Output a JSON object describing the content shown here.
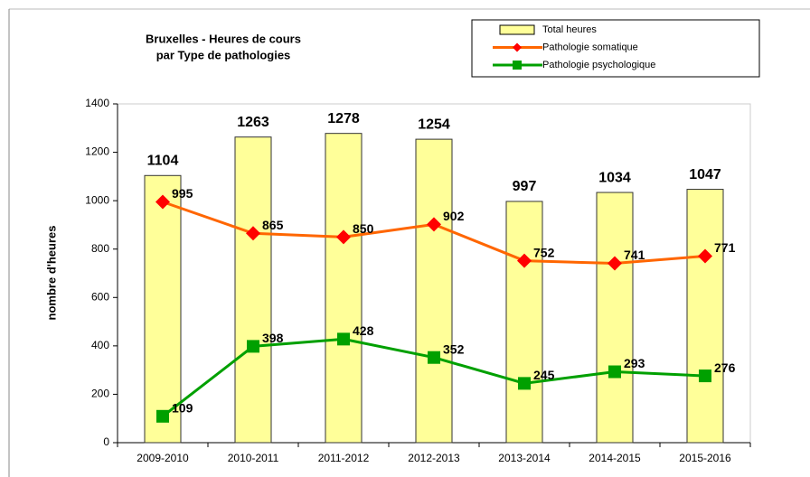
{
  "chart_data": {
    "type": "combo",
    "title": [
      "Bruxelles - Heures de cours",
      "par Type de pathologies"
    ],
    "y_label": "nombre d'heures",
    "categories": [
      "2009-2010",
      "2010-2011",
      "2011-2012",
      "2012-2013",
      "2013-2014",
      "2014-2015",
      "2015-2016"
    ],
    "series": [
      {
        "name": "Total heures",
        "type": "bar",
        "color": "#ffff99",
        "values": [
          1104,
          1263,
          1278,
          1254,
          997,
          1034,
          1047
        ]
      },
      {
        "name": "Pathologie somatique",
        "type": "line",
        "marker": "diamond",
        "color": "#ff6600",
        "marker_color": "#ff0000",
        "values": [
          995,
          865,
          850,
          902,
          752,
          741,
          771
        ]
      },
      {
        "name": "Pathologie psychologique",
        "type": "line",
        "marker": "square",
        "color": "#00a000",
        "marker_color": "#00a000",
        "values": [
          109,
          398,
          428,
          352,
          245,
          293,
          276
        ]
      }
    ],
    "ylim": [
      0,
      1400
    ],
    "yticks": [
      0,
      200,
      400,
      600,
      800,
      1000,
      1200,
      1400
    ],
    "legend": "top-right",
    "grid": false
  }
}
